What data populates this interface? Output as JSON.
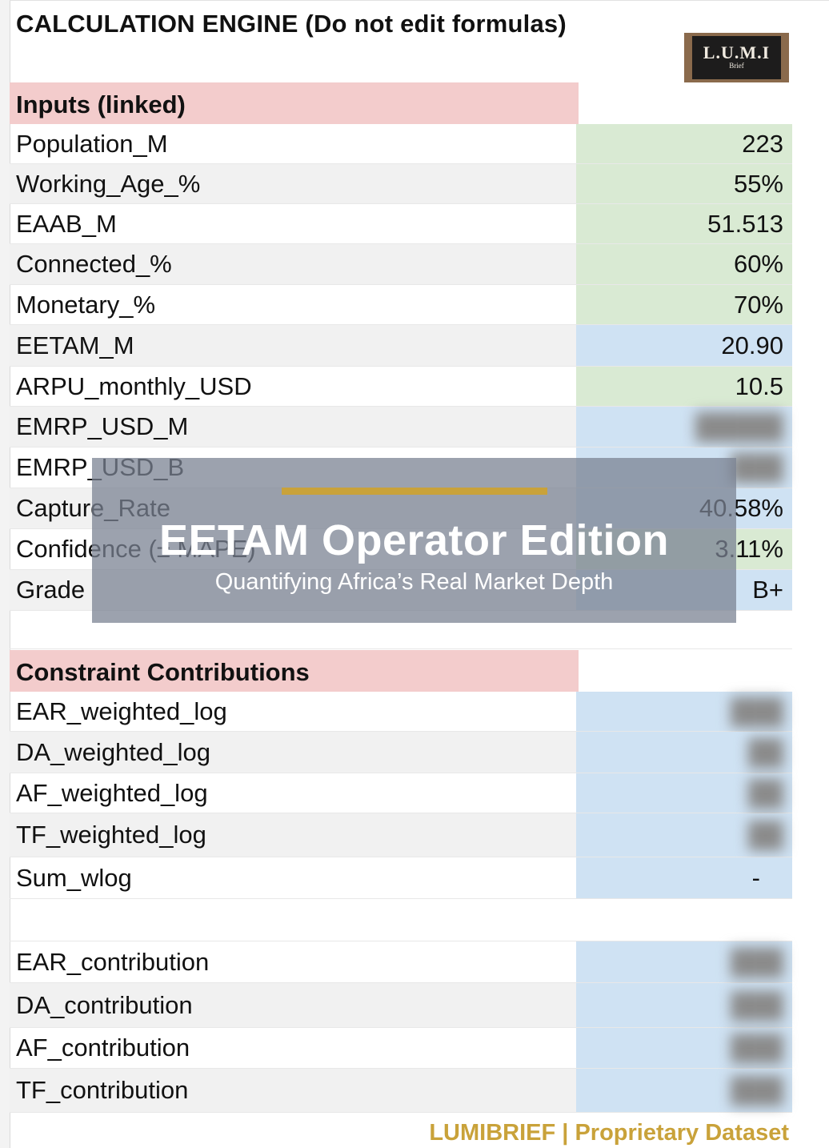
{
  "title": "CALCULATION ENGINE (Do not edit formulas)",
  "logo": {
    "name": "L.U.M.I",
    "sub": "Brief"
  },
  "inputs_section": "Inputs (linked)",
  "inputs": [
    {
      "label": "Population_M",
      "value": "223",
      "color": "green"
    },
    {
      "label": "Working_Age_%",
      "value": "55%",
      "color": "green"
    },
    {
      "label": "EAAB_M",
      "value": "51.513",
      "color": "green"
    },
    {
      "label": "Connected_%",
      "value": "60%",
      "color": "green"
    },
    {
      "label": "Monetary_%",
      "value": "70%",
      "color": "green"
    },
    {
      "label": "EETAM_M",
      "value": "20.90",
      "color": "blue"
    },
    {
      "label": "ARPU_monthly_USD",
      "value": "10.5",
      "color": "green"
    },
    {
      "label": "EMRP_USD_M",
      "value": "",
      "color": "blue"
    },
    {
      "label": "EMRP_USD_B",
      "value": "",
      "color": "blue"
    },
    {
      "label": "Capture_Rate",
      "value": "40.58%",
      "color": "blue"
    },
    {
      "label": "Confidence (± MAPE)",
      "value": "3.11%",
      "color": "green"
    },
    {
      "label": "Grade",
      "value": "B+",
      "color": "blue"
    }
  ],
  "constraints_section": "Constraint Contributions",
  "constraints": [
    {
      "label": "EAR_weighted_log",
      "value": "",
      "color": "blue"
    },
    {
      "label": "DA_weighted_log",
      "value": "",
      "color": "blue"
    },
    {
      "label": "AF_weighted_log",
      "value": "",
      "color": "blue"
    },
    {
      "label": "TF_weighted_log",
      "value": "",
      "color": "blue"
    },
    {
      "label": "Sum_wlog",
      "value": "-",
      "color": "blue"
    }
  ],
  "contributions": [
    {
      "label": "EAR_contribution",
      "value": "",
      "color": "blue"
    },
    {
      "label": "DA_contribution",
      "value": "",
      "color": "blue"
    },
    {
      "label": "AF_contribution",
      "value": "",
      "color": "blue"
    },
    {
      "label": "TF_contribution",
      "value": "",
      "color": "blue"
    }
  ],
  "overlay": {
    "heading": "EETAM Operator Edition",
    "subheading": "Quantifying Africa’s Real Market Depth"
  },
  "footer": "LUMIBRIEF | Proprietary Dataset"
}
